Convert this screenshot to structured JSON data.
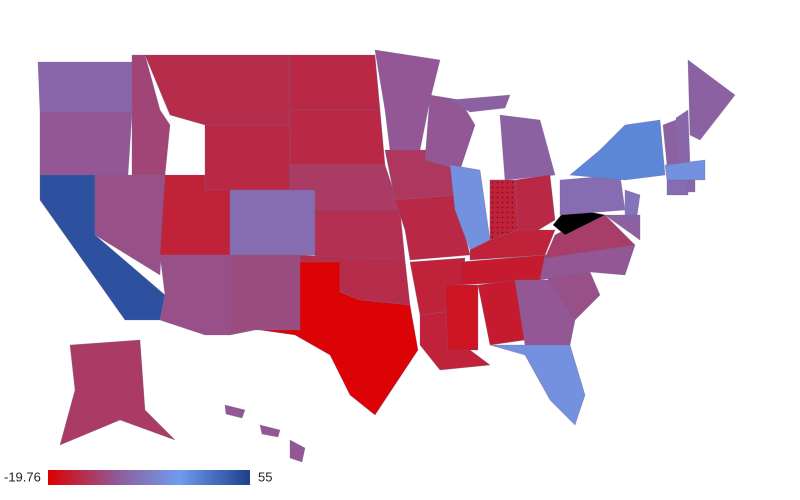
{
  "chart_data": {
    "type": "choropleth",
    "values": [
      10,
      5,
      50,
      0,
      3,
      -7,
      -8,
      -10,
      3,
      12,
      2,
      -8,
      -8,
      -3,
      -6,
      -7,
      -19,
      5,
      -4,
      -8,
      -10,
      -10,
      5,
      25,
      8,
      -10,
      -8,
      -10,
      -12,
      -14,
      -12,
      5,
      25,
      3,
      5,
      -2,
      null,
      12,
      35,
      15,
      8,
      8,
      10,
      8,
      25,
      12,
      10,
      -3,
      5
    ],
    "colorbar": {
      "min": -19.76,
      "max": 55
    },
    "colorscale": [
      [
        0,
        "#dd0000"
      ],
      [
        0.35,
        "#8e5c9c"
      ],
      [
        0.65,
        "#6f9cee"
      ],
      [
        1,
        "#1e3f8c"
      ]
    ],
    "missing_color": "#000000"
  }
}
